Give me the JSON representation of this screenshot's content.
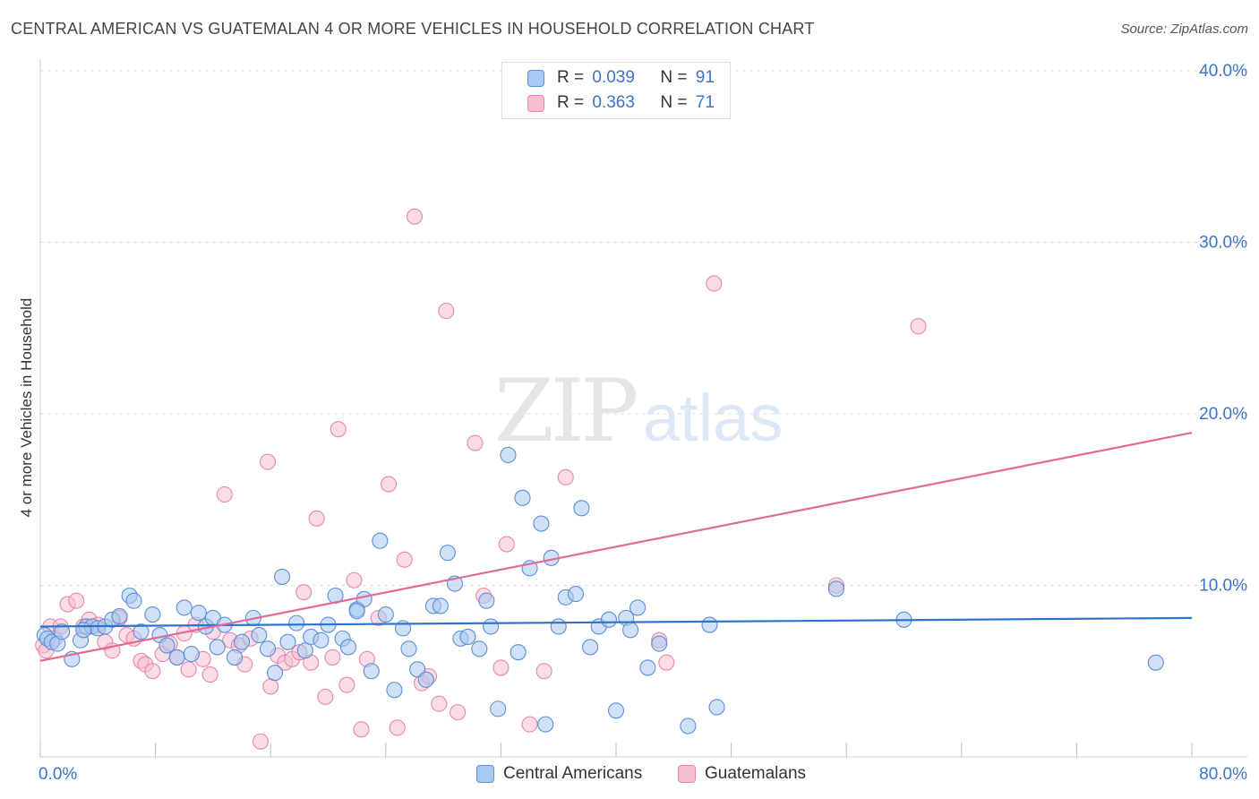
{
  "title": "CENTRAL AMERICAN VS GUATEMALAN 4 OR MORE VEHICLES IN HOUSEHOLD CORRELATION CHART",
  "source": "Source: ZipAtlas.com",
  "watermark": {
    "zip": "ZIP",
    "atlas": "atlas"
  },
  "legend": {
    "rows": [
      {
        "r_label": "R =",
        "r_value": "0.039",
        "n_label": "N =",
        "n_value": "91"
      },
      {
        "r_label": "R =",
        "r_value": "0.363",
        "n_label": "N =",
        "n_value": "71"
      }
    ]
  },
  "colors": {
    "blue_fill": "#a9c8f0",
    "blue_stroke": "#5b8fd6",
    "blue_line": "#2f72cc",
    "pink_fill": "#f7bdd0",
    "pink_stroke": "#e589a8",
    "pink_line": "#e06c96",
    "axis_text": "#3a74c8",
    "grid": "#dddddd"
  },
  "chart_data": {
    "type": "scatter",
    "title": "CENTRAL AMERICAN VS GUATEMALAN 4 OR MORE VEHICLES IN HOUSEHOLD CORRELATION CHART",
    "xlabel": "",
    "ylabel": "4 or more Vehicles in Household",
    "xlim": [
      0,
      80
    ],
    "ylim": [
      0,
      42
    ],
    "x_tick_labels": [
      "0.0%",
      "80.0%"
    ],
    "y_ticks": [
      10,
      20,
      30,
      40
    ],
    "y_tick_labels": [
      "10.0%",
      "20.0%",
      "30.0%",
      "40.0%"
    ],
    "grid": "horizontal dashed",
    "legend_position": "top-center",
    "series": [
      {
        "name": "Central Americans",
        "R": 0.039,
        "N": 91,
        "trend": [
          [
            0,
            7.6
          ],
          [
            80,
            8.1
          ]
        ],
        "points": [
          [
            0.3,
            7.1
          ],
          [
            0.5,
            6.9
          ],
          [
            0.8,
            6.7
          ],
          [
            1.2,
            6.6
          ],
          [
            1.5,
            7.3
          ],
          [
            2.2,
            5.7
          ],
          [
            2.8,
            6.8
          ],
          [
            3.2,
            7.6
          ],
          [
            3.6,
            7.6
          ],
          [
            4.0,
            7.5
          ],
          [
            4.5,
            7.6
          ],
          [
            5.0,
            8.0
          ],
          [
            5.5,
            8.2
          ],
          [
            6.2,
            9.4
          ],
          [
            6.5,
            9.1
          ],
          [
            7.0,
            7.3
          ],
          [
            7.8,
            8.3
          ],
          [
            8.3,
            7.1
          ],
          [
            8.8,
            6.5
          ],
          [
            9.5,
            5.8
          ],
          [
            10.0,
            8.7
          ],
          [
            10.5,
            6.0
          ],
          [
            11.0,
            8.4
          ],
          [
            11.5,
            7.6
          ],
          [
            12.0,
            8.1
          ],
          [
            12.3,
            6.4
          ],
          [
            12.8,
            7.7
          ],
          [
            13.5,
            5.8
          ],
          [
            14.0,
            6.7
          ],
          [
            14.8,
            8.1
          ],
          [
            15.2,
            7.1
          ],
          [
            15.8,
            6.3
          ],
          [
            16.3,
            4.9
          ],
          [
            16.8,
            10.5
          ],
          [
            17.2,
            6.7
          ],
          [
            17.8,
            7.8
          ],
          [
            18.4,
            6.2
          ],
          [
            18.8,
            7.0
          ],
          [
            19.5,
            6.8
          ],
          [
            20.0,
            7.7
          ],
          [
            20.5,
            9.4
          ],
          [
            21.0,
            6.9
          ],
          [
            21.4,
            6.4
          ],
          [
            22.0,
            8.6
          ],
          [
            22.5,
            9.2
          ],
          [
            23.0,
            5.0
          ],
          [
            23.6,
            12.6
          ],
          [
            24.0,
            8.3
          ],
          [
            24.6,
            3.9
          ],
          [
            25.2,
            7.5
          ],
          [
            25.6,
            6.3
          ],
          [
            26.2,
            5.1
          ],
          [
            26.8,
            4.5
          ],
          [
            27.3,
            8.8
          ],
          [
            27.8,
            8.8
          ],
          [
            28.3,
            11.9
          ],
          [
            28.8,
            10.1
          ],
          [
            29.2,
            6.9
          ],
          [
            29.7,
            7.0
          ],
          [
            30.5,
            6.3
          ],
          [
            31.0,
            9.1
          ],
          [
            31.3,
            7.6
          ],
          [
            31.8,
            2.8
          ],
          [
            32.5,
            17.6
          ],
          [
            33.2,
            6.1
          ],
          [
            33.5,
            15.1
          ],
          [
            34.0,
            11.0
          ],
          [
            34.8,
            13.6
          ],
          [
            35.1,
            1.9
          ],
          [
            35.5,
            11.6
          ],
          [
            36.0,
            7.6
          ],
          [
            36.5,
            9.3
          ],
          [
            37.2,
            9.5
          ],
          [
            37.6,
            14.5
          ],
          [
            38.2,
            6.4
          ],
          [
            38.8,
            7.6
          ],
          [
            39.5,
            8.0
          ],
          [
            40.0,
            2.7
          ],
          [
            40.7,
            8.1
          ],
          [
            41.0,
            7.4
          ],
          [
            41.5,
            8.7
          ],
          [
            42.2,
            5.2
          ],
          [
            43.0,
            6.6
          ],
          [
            45.0,
            1.8
          ],
          [
            46.5,
            7.7
          ],
          [
            47.0,
            2.9
          ],
          [
            55.3,
            9.8
          ],
          [
            60.0,
            8.0
          ],
          [
            77.5,
            5.5
          ],
          [
            3.0,
            7.4
          ],
          [
            22.0,
            8.5
          ]
        ]
      },
      {
        "name": "Guatemalans",
        "R": 0.363,
        "N": 71,
        "trend": [
          [
            0,
            5.6
          ],
          [
            80,
            18.9
          ]
        ],
        "points": [
          [
            0.2,
            6.5
          ],
          [
            0.4,
            6.2
          ],
          [
            0.7,
            7.6
          ],
          [
            1.0,
            6.9
          ],
          [
            1.4,
            7.6
          ],
          [
            1.9,
            8.9
          ],
          [
            2.5,
            9.1
          ],
          [
            3.0,
            7.6
          ],
          [
            3.4,
            8.0
          ],
          [
            4.0,
            7.7
          ],
          [
            4.5,
            6.7
          ],
          [
            5.0,
            6.2
          ],
          [
            5.5,
            8.1
          ],
          [
            6.0,
            7.1
          ],
          [
            6.5,
            6.9
          ],
          [
            7.0,
            5.6
          ],
          [
            7.3,
            5.4
          ],
          [
            7.8,
            5.0
          ],
          [
            8.5,
            6.0
          ],
          [
            9.0,
            6.6
          ],
          [
            9.5,
            5.8
          ],
          [
            10.0,
            7.2
          ],
          [
            10.3,
            5.1
          ],
          [
            10.8,
            7.7
          ],
          [
            11.3,
            5.7
          ],
          [
            11.8,
            4.8
          ],
          [
            12.0,
            7.3
          ],
          [
            12.8,
            15.3
          ],
          [
            13.2,
            6.8
          ],
          [
            13.8,
            6.5
          ],
          [
            14.2,
            5.4
          ],
          [
            14.6,
            6.9
          ],
          [
            15.3,
            0.9
          ],
          [
            15.8,
            17.2
          ],
          [
            16.0,
            4.1
          ],
          [
            16.5,
            5.9
          ],
          [
            17.0,
            5.5
          ],
          [
            17.5,
            5.7
          ],
          [
            18.0,
            6.1
          ],
          [
            18.3,
            9.6
          ],
          [
            18.8,
            5.5
          ],
          [
            19.2,
            13.9
          ],
          [
            19.8,
            3.5
          ],
          [
            20.3,
            5.8
          ],
          [
            20.7,
            19.1
          ],
          [
            21.3,
            4.2
          ],
          [
            21.8,
            10.3
          ],
          [
            22.3,
            1.6
          ],
          [
            22.7,
            5.7
          ],
          [
            23.5,
            8.1
          ],
          [
            24.2,
            15.9
          ],
          [
            24.8,
            1.7
          ],
          [
            25.3,
            11.5
          ],
          [
            26.0,
            31.5
          ],
          [
            26.5,
            4.3
          ],
          [
            27.0,
            4.7
          ],
          [
            27.7,
            3.1
          ],
          [
            28.2,
            26.0
          ],
          [
            29.0,
            2.6
          ],
          [
            30.2,
            18.3
          ],
          [
            30.8,
            9.4
          ],
          [
            32.0,
            5.2
          ],
          [
            32.4,
            12.4
          ],
          [
            34.0,
            1.9
          ],
          [
            35.0,
            5.0
          ],
          [
            36.5,
            16.3
          ],
          [
            43.0,
            6.8
          ],
          [
            43.5,
            5.5
          ],
          [
            46.8,
            27.6
          ],
          [
            55.3,
            10.0
          ],
          [
            61.0,
            25.1
          ]
        ]
      }
    ]
  },
  "bottom_legend": {
    "series1": "Central Americans",
    "series2": "Guatemalans"
  }
}
